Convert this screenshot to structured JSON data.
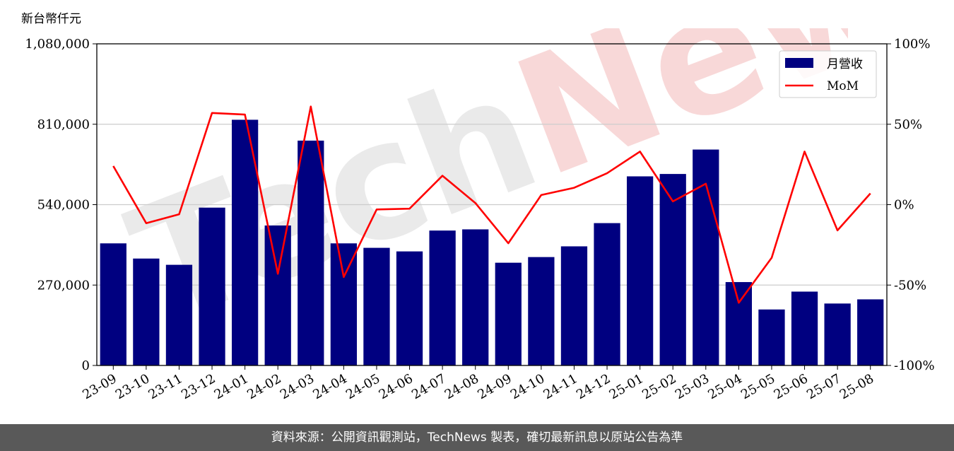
{
  "chart_data": {
    "type": "bar",
    "y_unit_label": "新台幣仟元",
    "categories": [
      "23-09",
      "23-10",
      "23-11",
      "23-12",
      "24-01",
      "24-02",
      "24-03",
      "24-04",
      "24-05",
      "24-06",
      "24-07",
      "24-08",
      "24-09",
      "24-10",
      "24-11",
      "24-12",
      "25-01",
      "25-02",
      "25-03",
      "25-04",
      "25-05",
      "25-06",
      "25-07",
      "25-08"
    ],
    "series": [
      {
        "name": "月營收",
        "kind": "bar",
        "axis": "left",
        "color": "#000080",
        "values": [
          410000,
          359000,
          338000,
          530000,
          825000,
          470000,
          755000,
          410000,
          395000,
          383000,
          453000,
          457000,
          345000,
          364000,
          400000,
          478000,
          635000,
          643000,
          725000,
          280000,
          188000,
          248000,
          208000,
          222000
        ]
      },
      {
        "name": "MoM",
        "kind": "line",
        "axis": "right",
        "color": "#ff0000",
        "values": [
          24,
          -11.5,
          -6,
          57,
          56,
          -43,
          61,
          -45,
          -3,
          -2.5,
          18,
          1,
          -24,
          6,
          10.5,
          19.5,
          33,
          2,
          13,
          -61,
          -33,
          33,
          -16,
          7
        ]
      }
    ],
    "y_left": {
      "lim": [
        0,
        1080000
      ],
      "ticks": [
        0,
        270000,
        540000,
        810000,
        1080000
      ],
      "tick_labels": [
        "0",
        "270,000",
        "540,000",
        "810,000",
        "1,080,000"
      ]
    },
    "y_right": {
      "lim": [
        -100,
        100
      ],
      "ticks": [
        -100,
        -50,
        0,
        50,
        100
      ],
      "tick_labels": [
        "-100%",
        "-50%",
        "0%",
        "50%",
        "100%"
      ]
    },
    "grid": "horizontal",
    "legend": "top-right"
  },
  "watermark": "TechNews",
  "footer": {
    "text": "資料來源：公開資訊觀測站，TechNews 製表，確切最新訊息以原站公告為準"
  }
}
